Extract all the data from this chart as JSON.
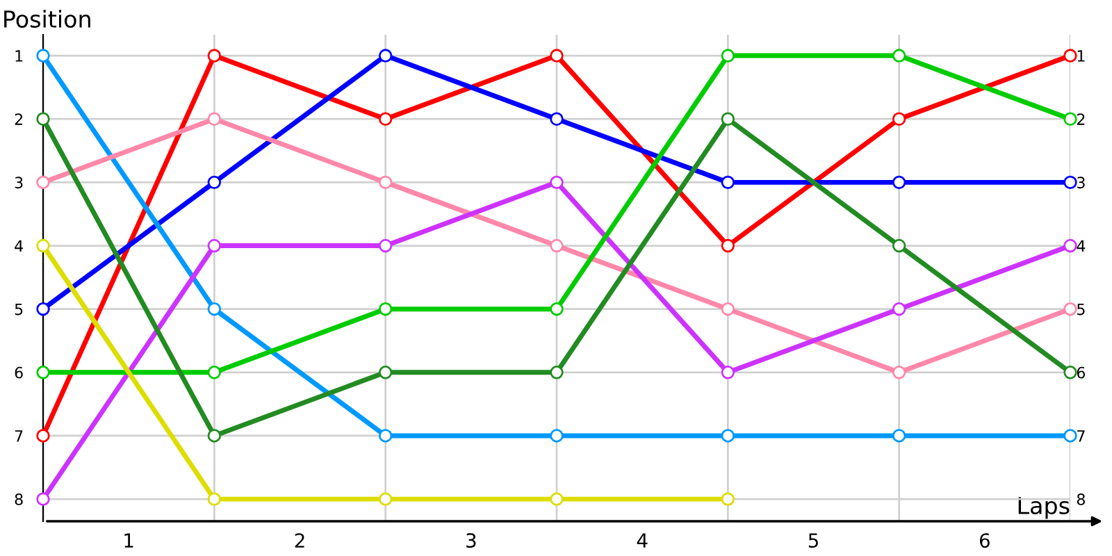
{
  "chart_data": {
    "type": "line",
    "xlabel": "Laps",
    "ylabel": "Position",
    "x": [
      0,
      1,
      2,
      3,
      4,
      5,
      6
    ],
    "series": [
      {
        "color": "#ff0000",
        "values": [
          7,
          1,
          2,
          1,
          4,
          2,
          1
        ]
      },
      {
        "color": "#0000ff",
        "values": [
          5,
          3,
          1,
          2,
          3,
          3,
          3
        ]
      },
      {
        "color": "#0099ff",
        "values": [
          1,
          5,
          7,
          7,
          7,
          7,
          7
        ]
      },
      {
        "color": "#ff88aa",
        "values": [
          3,
          2,
          3,
          4,
          5,
          6,
          5
        ]
      },
      {
        "color": "#cc33ff",
        "values": [
          8,
          4,
          4,
          3,
          6,
          5,
          4
        ]
      },
      {
        "color": "#00cc00",
        "values": [
          6,
          6,
          5,
          5,
          1,
          1,
          2
        ]
      },
      {
        "color": "#228b22",
        "values": [
          2,
          7,
          6,
          6,
          2,
          4,
          6
        ]
      },
      {
        "color": "#dddd00",
        "values": [
          4,
          8,
          8,
          8,
          8,
          null,
          null
        ]
      }
    ],
    "xlim": [
      0,
      6
    ],
    "xticks": [
      {
        "value": 0,
        "label": null
      },
      {
        "value": 0.5,
        "label": "1"
      },
      {
        "value": 1,
        "label": null
      },
      {
        "value": 1.5,
        "label": "2"
      },
      {
        "value": 2,
        "label": null
      },
      {
        "value": 2.5,
        "label": "3"
      },
      {
        "value": 3,
        "label": null
      },
      {
        "value": 3.5,
        "label": "4"
      },
      {
        "value": 4,
        "label": null
      },
      {
        "value": 4.5,
        "label": "5"
      },
      {
        "value": 5,
        "label": null
      },
      {
        "value": 5.5,
        "label": "6"
      },
      {
        "value": 6,
        "label": null
      }
    ],
    "ylim": [
      8.35,
      0.67
    ],
    "yticks": [
      1,
      2,
      3,
      4,
      5,
      6,
      7,
      8
    ],
    "y2lim": [
      8.35,
      0.67
    ],
    "y2ticks": [
      1,
      2,
      3,
      4,
      5,
      6,
      7,
      8
    ],
    "grid": true,
    "marker": "circle",
    "line_style": "solid"
  }
}
